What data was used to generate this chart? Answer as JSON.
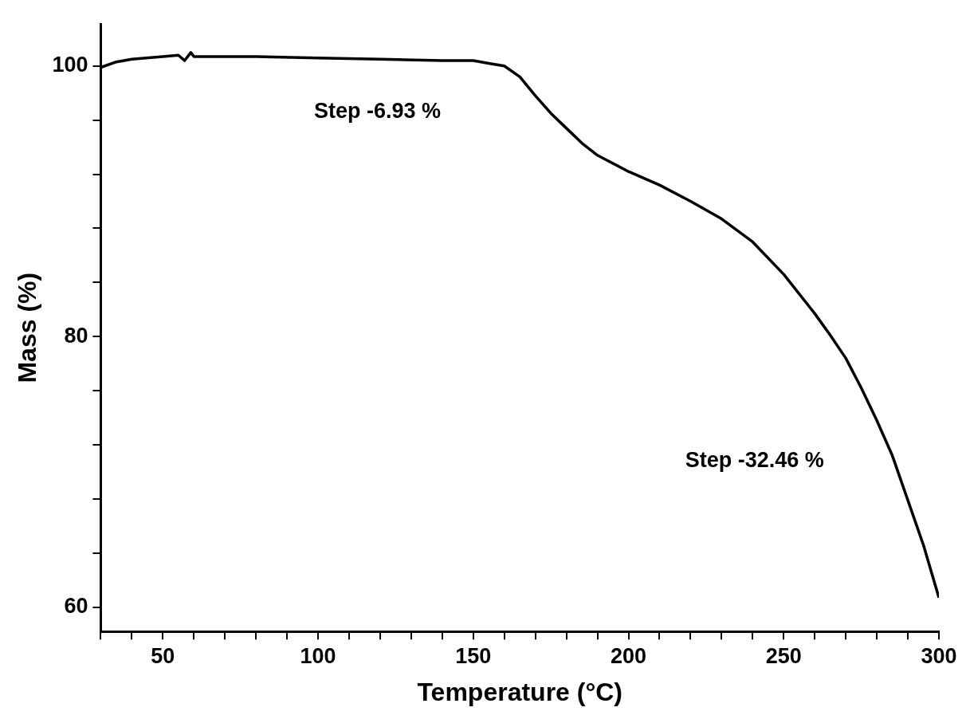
{
  "chart_data": {
    "type": "line",
    "xlabel": "Temperature (°C)",
    "ylabel": "Mass (%)",
    "xlim": [
      30,
      300
    ],
    "ylim": [
      58.2,
      103.1
    ],
    "xticks": [
      {
        "value": 30,
        "label": null
      },
      {
        "value": 40,
        "label": null
      },
      50,
      {
        "value": 60,
        "label": null
      },
      {
        "value": 70,
        "label": null
      },
      {
        "value": 80,
        "label": null
      },
      {
        "value": 90,
        "label": null
      },
      100,
      {
        "value": 110,
        "label": null
      },
      {
        "value": 120,
        "label": null
      },
      {
        "value": 130,
        "label": null
      },
      {
        "value": 140,
        "label": null
      },
      150,
      {
        "value": 160,
        "label": null
      },
      {
        "value": 170,
        "label": null
      },
      {
        "value": 180,
        "label": null
      },
      {
        "value": 190,
        "label": null
      },
      200,
      {
        "value": 210,
        "label": null
      },
      {
        "value": 220,
        "label": null
      },
      {
        "value": 230,
        "label": null
      },
      {
        "value": 240,
        "label": null
      },
      250,
      {
        "value": 260,
        "label": null
      },
      {
        "value": 270,
        "label": null
      },
      {
        "value": 280,
        "label": null
      },
      {
        "value": 290,
        "label": null
      },
      300
    ],
    "yticks": [
      60,
      {
        "value": 64,
        "label": null
      },
      {
        "value": 68,
        "label": null
      },
      {
        "value": 72,
        "label": null
      },
      {
        "value": 76,
        "label": null
      },
      80,
      {
        "value": 84,
        "label": null
      },
      {
        "value": 88,
        "label": null
      },
      {
        "value": 92,
        "label": null
      },
      {
        "value": 96,
        "label": null
      },
      100
    ],
    "grid": false,
    "legend": false,
    "marker": "none",
    "line_style": "solid",
    "series": [
      {
        "color": "#000000",
        "x": [
          30,
          35,
          40,
          50,
          55,
          57,
          59,
          60,
          80,
          100,
          120,
          140,
          150,
          155,
          160,
          165,
          170,
          175,
          180,
          185,
          190,
          200,
          210,
          220,
          230,
          240,
          250,
          260,
          265,
          270,
          275,
          280,
          285,
          290,
          295,
          300
        ],
        "values": [
          99.9,
          100.3,
          100.5,
          100.7,
          100.8,
          100.4,
          101.0,
          100.7,
          100.7,
          100.6,
          100.5,
          100.4,
          100.4,
          100.2,
          100.0,
          99.2,
          97.8,
          96.5,
          95.4,
          94.3,
          93.4,
          92.2,
          91.2,
          90.0,
          88.7,
          87.0,
          84.6,
          81.7,
          80.1,
          78.4,
          76.2,
          73.8,
          71.2,
          67.9,
          64.6,
          60.7
        ]
      }
    ],
    "annotations": [
      "Step -6.93 %",
      "Step -32.46 %"
    ]
  }
}
